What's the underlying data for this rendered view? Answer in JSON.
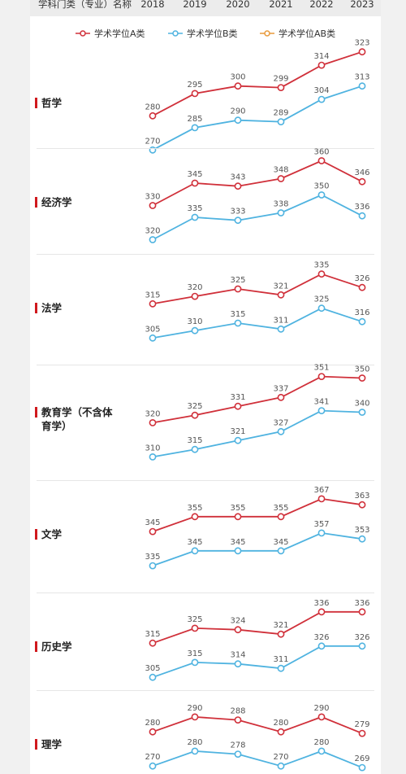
{
  "header": {
    "category_label": "学科门类（专业）名称",
    "years": [
      "2018",
      "2019",
      "2020",
      "2021",
      "2022",
      "2023"
    ]
  },
  "legend": [
    {
      "name": "学术学位A类",
      "color": "#d0303a"
    },
    {
      "name": "学术学位B类",
      "color": "#4fb3e0"
    },
    {
      "name": "学术学位AB类",
      "color": "#e89a3c"
    }
  ],
  "chart_data": [
    {
      "type": "line",
      "category": "哲学",
      "x": [
        "2018",
        "2019",
        "2020",
        "2021",
        "2022",
        "2023"
      ],
      "series": [
        {
          "name": "学术学位A类",
          "values": [
            280,
            295,
            300,
            299,
            314,
            323
          ]
        },
        {
          "name": "学术学位B类",
          "values": [
            270,
            285,
            290,
            289,
            304,
            313
          ]
        }
      ]
    },
    {
      "type": "line",
      "category": "经济学",
      "x": [
        "2018",
        "2019",
        "2020",
        "2021",
        "2022",
        "2023"
      ],
      "series": [
        {
          "name": "学术学位A类",
          "values": [
            330,
            345,
            343,
            348,
            360,
            346
          ]
        },
        {
          "name": "学术学位B类",
          "values": [
            320,
            335,
            333,
            338,
            350,
            336
          ]
        }
      ]
    },
    {
      "type": "line",
      "category": "法学",
      "x": [
        "2018",
        "2019",
        "2020",
        "2021",
        "2022",
        "2023"
      ],
      "series": [
        {
          "name": "学术学位A类",
          "values": [
            315,
            320,
            325,
            321,
            335,
            326
          ]
        },
        {
          "name": "学术学位B类",
          "values": [
            305,
            310,
            315,
            311,
            325,
            316
          ]
        }
      ]
    },
    {
      "type": "line",
      "category": "教育学（不含体育学）",
      "x": [
        "2018",
        "2019",
        "2020",
        "2021",
        "2022",
        "2023"
      ],
      "series": [
        {
          "name": "学术学位A类",
          "values": [
            320,
            325,
            331,
            337,
            351,
            350
          ]
        },
        {
          "name": "学术学位B类",
          "values": [
            310,
            315,
            321,
            327,
            341,
            340
          ]
        }
      ]
    },
    {
      "type": "line",
      "category": "文学",
      "x": [
        "2018",
        "2019",
        "2020",
        "2021",
        "2022",
        "2023"
      ],
      "series": [
        {
          "name": "学术学位A类",
          "values": [
            345,
            355,
            355,
            355,
            367,
            363
          ]
        },
        {
          "name": "学术学位B类",
          "values": [
            335,
            345,
            345,
            345,
            357,
            353
          ]
        }
      ]
    },
    {
      "type": "line",
      "category": "历史学",
      "x": [
        "2018",
        "2019",
        "2020",
        "2021",
        "2022",
        "2023"
      ],
      "series": [
        {
          "name": "学术学位A类",
          "values": [
            315,
            325,
            324,
            321,
            336,
            336
          ]
        },
        {
          "name": "学术学位B类",
          "values": [
            305,
            315,
            314,
            311,
            326,
            326
          ]
        }
      ]
    },
    {
      "type": "line",
      "category": "理学",
      "x": [
        "2018",
        "2019",
        "2020",
        "2021",
        "2022",
        "2023"
      ],
      "series": [
        {
          "name": "学术学位A类",
          "values": [
            280,
            290,
            288,
            280,
            290,
            279
          ]
        },
        {
          "name": "学术学位B类",
          "values": [
            270,
            280,
            278,
            270,
            280,
            269
          ]
        }
      ]
    }
  ]
}
